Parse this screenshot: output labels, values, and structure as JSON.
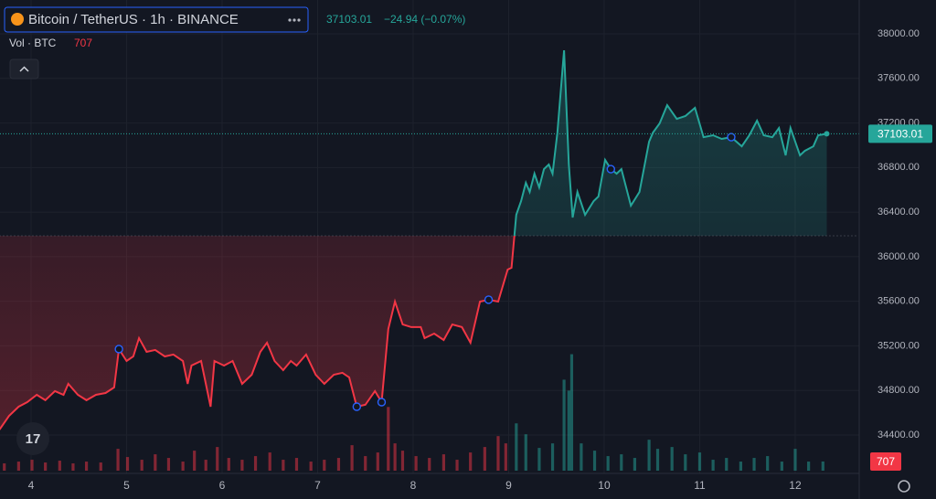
{
  "chart_data": {
    "type": "line",
    "title": "Bitcoin / TetherUS · 1h · BINANCE",
    "last_price": 37103.01,
    "change": "−24.94 (−0.07%)",
    "volume_title": "Vol · BTC",
    "volume_last": 707,
    "baseline": 36188,
    "up_color": "#26a69a",
    "down_color": "#f23645",
    "xlim": [
      3.675,
      12.67
    ],
    "xticks": [
      4,
      5,
      6,
      7,
      8,
      9,
      10,
      11,
      12
    ],
    "ylim": [
      34080,
      38238
    ],
    "yticks": [
      {
        "value": 34400,
        "label": "34400.00"
      },
      {
        "value": 34800,
        "label": "34800.00"
      },
      {
        "value": 35200,
        "label": "35200.00"
      },
      {
        "value": 35600,
        "label": "35600.00"
      },
      {
        "value": 36000,
        "label": "36000.00"
      },
      {
        "value": 36400,
        "label": "36400.00"
      },
      {
        "value": 36800,
        "label": "36800.00"
      },
      {
        "value": 37200,
        "label": "37200.00"
      },
      {
        "value": 37600,
        "label": "37600.00"
      },
      {
        "value": 38000,
        "label": "38000.00"
      }
    ],
    "grid": true,
    "x": [
      3.67,
      3.77,
      3.87,
      3.96,
      4.06,
      4.15,
      4.25,
      4.34,
      4.39,
      4.49,
      4.58,
      4.68,
      4.78,
      4.87,
      4.92,
      5.0,
      5.07,
      5.13,
      5.21,
      5.3,
      5.4,
      5.49,
      5.59,
      5.64,
      5.68,
      5.78,
      5.88,
      5.92,
      6.02,
      6.11,
      6.21,
      6.31,
      6.4,
      6.47,
      6.55,
      6.64,
      6.72,
      6.78,
      6.88,
      6.98,
      7.07,
      7.17,
      7.26,
      7.33,
      7.41,
      7.5,
      7.6,
      7.67,
      7.74,
      7.81,
      7.89,
      7.98,
      8.08,
      8.12,
      8.22,
      8.32,
      8.41,
      8.51,
      8.6,
      8.7,
      8.79,
      8.89,
      8.99,
      9.03,
      9.08,
      9.13,
      9.18,
      9.22,
      9.27,
      9.32,
      9.37,
      9.42,
      9.46,
      9.51,
      9.58,
      9.63,
      9.67,
      9.72,
      9.8,
      9.89,
      9.94,
      10.01,
      10.07,
      10.13,
      10.18,
      10.28,
      10.37,
      10.47,
      10.51,
      10.58,
      10.66,
      10.76,
      10.85,
      10.95,
      11.04,
      11.14,
      11.23,
      11.33,
      11.44,
      11.52,
      11.6,
      11.67,
      11.76,
      11.83,
      11.9,
      11.95,
      12.05,
      12.1,
      12.19,
      12.24,
      12.33
    ],
    "values": [
      34449,
      34572,
      34654,
      34695,
      34761,
      34712,
      34794,
      34761,
      34859,
      34761,
      34712,
      34761,
      34777,
      34827,
      35171,
      35064,
      35105,
      35269,
      35146,
      35163,
      35105,
      35122,
      35064,
      34859,
      35023,
      35064,
      34654,
      35064,
      35023,
      35064,
      34859,
      34941,
      35146,
      35228,
      35064,
      34982,
      35064,
      35023,
      35122,
      34941,
      34859,
      34941,
      34958,
      34917,
      34654,
      34671,
      34794,
      34695,
      35351,
      35597,
      35392,
      35368,
      35368,
      35269,
      35310,
      35253,
      35392,
      35368,
      35228,
      35597,
      35614,
      35597,
      35884,
      35901,
      36376,
      36499,
      36663,
      36581,
      36745,
      36622,
      36786,
      36827,
      36745,
      37114,
      37852,
      36827,
      36352,
      36581,
      36376,
      36499,
      36540,
      36868,
      36786,
      36745,
      36786,
      36458,
      36581,
      37032,
      37114,
      37196,
      37360,
      37237,
      37262,
      37336,
      37073,
      37090,
      37057,
      37073,
      36991,
      37090,
      37221,
      37090,
      37073,
      37155,
      36909,
      37155,
      36909,
      36950,
      36991,
      37090,
      37103.01
    ],
    "volume": {
      "ylim": [
        0,
        9000
      ],
      "x": [
        3.72,
        3.87,
        4.01,
        4.15,
        4.3,
        4.44,
        4.58,
        4.73,
        4.91,
        5.01,
        5.16,
        5.3,
        5.44,
        5.59,
        5.71,
        5.83,
        5.95,
        6.07,
        6.21,
        6.35,
        6.5,
        6.64,
        6.78,
        6.93,
        7.07,
        7.22,
        7.36,
        7.5,
        7.63,
        7.74,
        7.81,
        7.89,
        8.03,
        8.17,
        8.32,
        8.46,
        8.6,
        8.75,
        8.89,
        8.97,
        9.08,
        9.18,
        9.32,
        9.46,
        9.58,
        9.63,
        9.66,
        9.76,
        9.9,
        10.04,
        10.18,
        10.32,
        10.47,
        10.56,
        10.71,
        10.85,
        11.0,
        11.14,
        11.28,
        11.43,
        11.57,
        11.71,
        11.86,
        12.0,
        12.14,
        12.29
      ],
      "values": [
        560,
        700,
        840,
        630,
        770,
        560,
        700,
        630,
        1680,
        1050,
        840,
        1260,
        980,
        700,
        1540,
        840,
        1820,
        980,
        840,
        1120,
        1400,
        840,
        980,
        700,
        840,
        980,
        1960,
        1120,
        1400,
        4900,
        2100,
        1540,
        1120,
        980,
        1260,
        840,
        1400,
        1820,
        2660,
        2100,
        3640,
        2800,
        1750,
        2100,
        7000,
        6160,
        8960,
        2100,
        1540,
        1120,
        1260,
        980,
        2380,
        1680,
        1820,
        1260,
        1400,
        840,
        980,
        700,
        980,
        1120,
        700,
        1680,
        700,
        707
      ]
    }
  }
}
